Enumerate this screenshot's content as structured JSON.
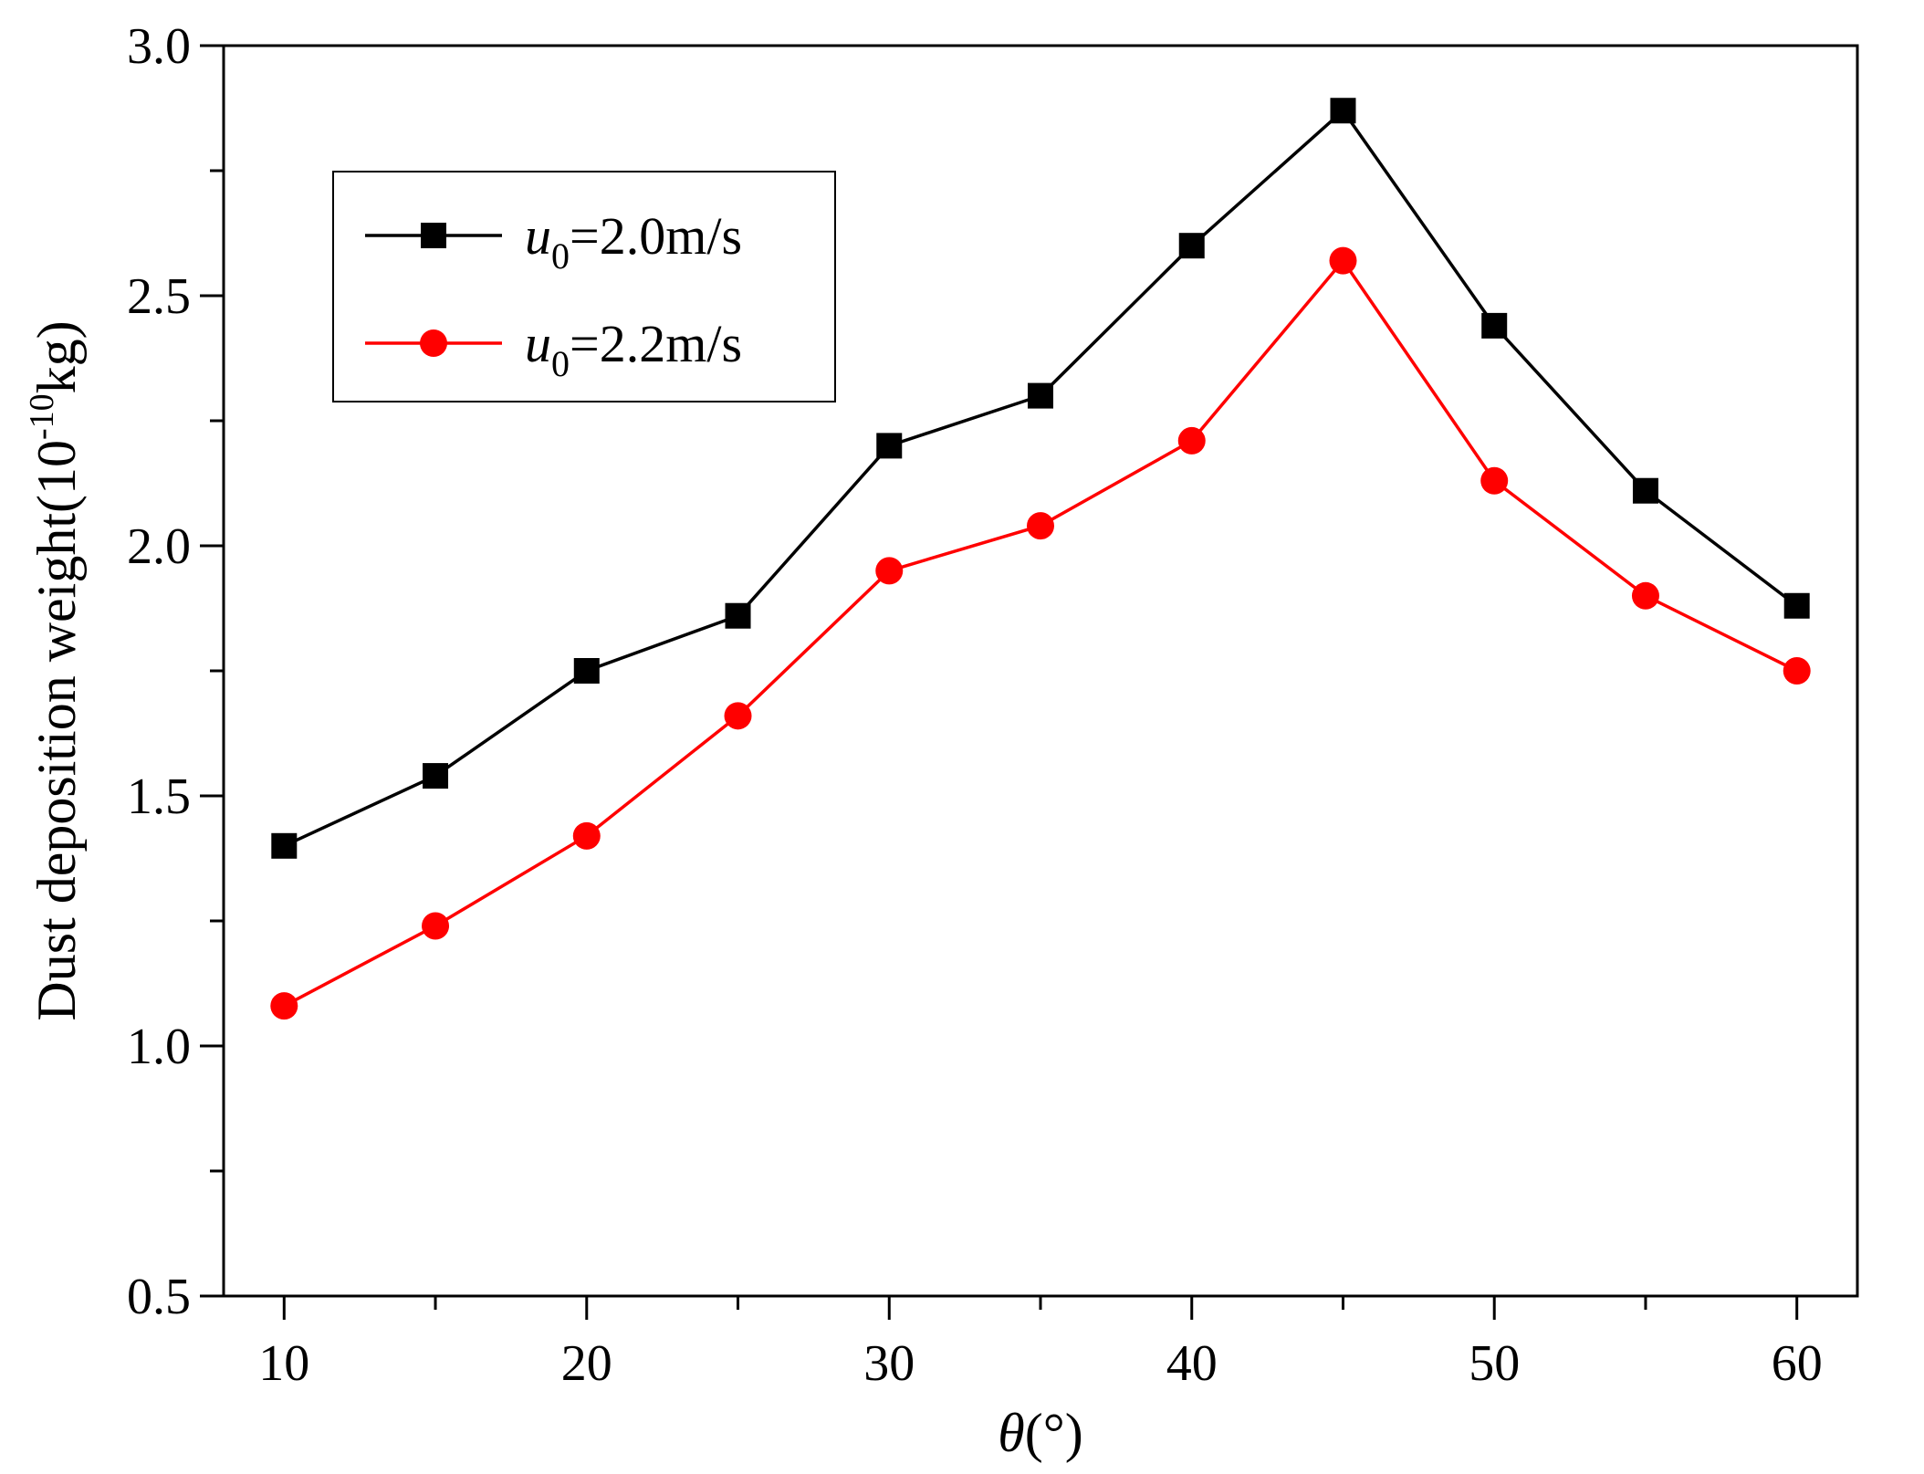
{
  "chart_data": {
    "type": "line",
    "title": "",
    "xlabel": "θ(°)",
    "xlabel_symbol": "θ",
    "xlabel_unit": "(°)",
    "ylabel": "Dust deposition weight(10⁻¹⁰kg)",
    "ylabel_prefix": "Dust deposition weight(10",
    "ylabel_exponent": "-10",
    "ylabel_suffix": "kg)",
    "xlim": [
      8,
      62
    ],
    "ylim": [
      0.5,
      3.0
    ],
    "x": [
      10,
      15,
      20,
      25,
      30,
      35,
      40,
      45,
      50,
      55,
      60
    ],
    "x_ticks": [
      10,
      20,
      30,
      40,
      50,
      60
    ],
    "x_minor_ticks": [
      15,
      25,
      35,
      45,
      55
    ],
    "y_ticks": [
      "0.5",
      "1.0",
      "1.5",
      "2.0",
      "2.5",
      "3.0"
    ],
    "y_minor_ticks": [
      0.75,
      1.25,
      1.75,
      2.25,
      2.75
    ],
    "grid": false,
    "legend_position": "top-left",
    "series": [
      {
        "name": "u0=2.0m/s",
        "label_var": "u",
        "label_sub": "0",
        "label_rest": "=2.0m/s",
        "marker": "square",
        "color": "#000000",
        "values": [
          1.4,
          1.54,
          1.75,
          1.86,
          2.2,
          2.3,
          2.6,
          2.87,
          2.44,
          2.11,
          1.88
        ]
      },
      {
        "name": "u0=2.2m/s",
        "label_var": "u",
        "label_sub": "0",
        "label_rest": "=2.2m/s",
        "marker": "circle",
        "color": "#ff0000",
        "values": [
          1.08,
          1.24,
          1.42,
          1.66,
          1.95,
          2.04,
          2.21,
          2.57,
          2.13,
          1.9,
          1.75
        ]
      }
    ]
  }
}
